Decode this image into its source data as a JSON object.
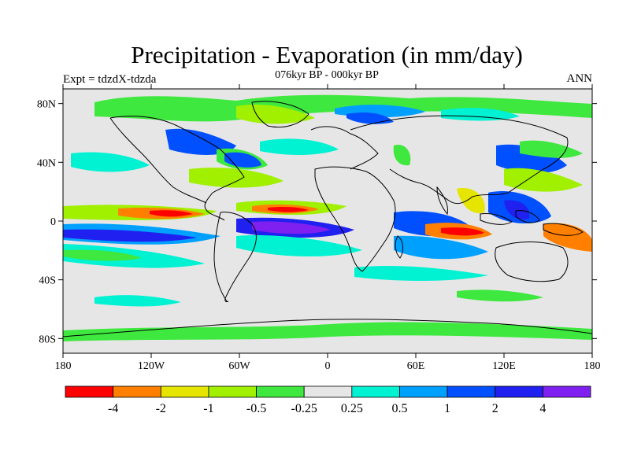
{
  "title": "Precipitation - Evaporation (in mm/day)",
  "subtitle": "076kyr BP - 000kyr BP",
  "left_label": "Expt = tdzdX-tdzda",
  "right_label": "ANN",
  "lat_ticks": [
    "80N",
    "40N",
    "0",
    "40S",
    "80S"
  ],
  "lon_ticks": [
    "180",
    "120W",
    "60W",
    "0",
    "60E",
    "120E",
    "180"
  ],
  "colorbar": {
    "colors": [
      "#ff0000",
      "#ff8000",
      "#e5e500",
      "#a0f000",
      "#3ee83e",
      "#e6e6e6",
      "#00f2d2",
      "#00a0ff",
      "#0050ff",
      "#2020f0",
      "#8020f0"
    ],
    "labels": [
      "-4",
      "-2",
      "-1",
      "-0.5",
      "-0.25",
      "0.25",
      "0.5",
      "1",
      "2",
      "4"
    ]
  },
  "map_colors": {
    "background": "#e6e6e6",
    "land_outline": "#000000"
  }
}
